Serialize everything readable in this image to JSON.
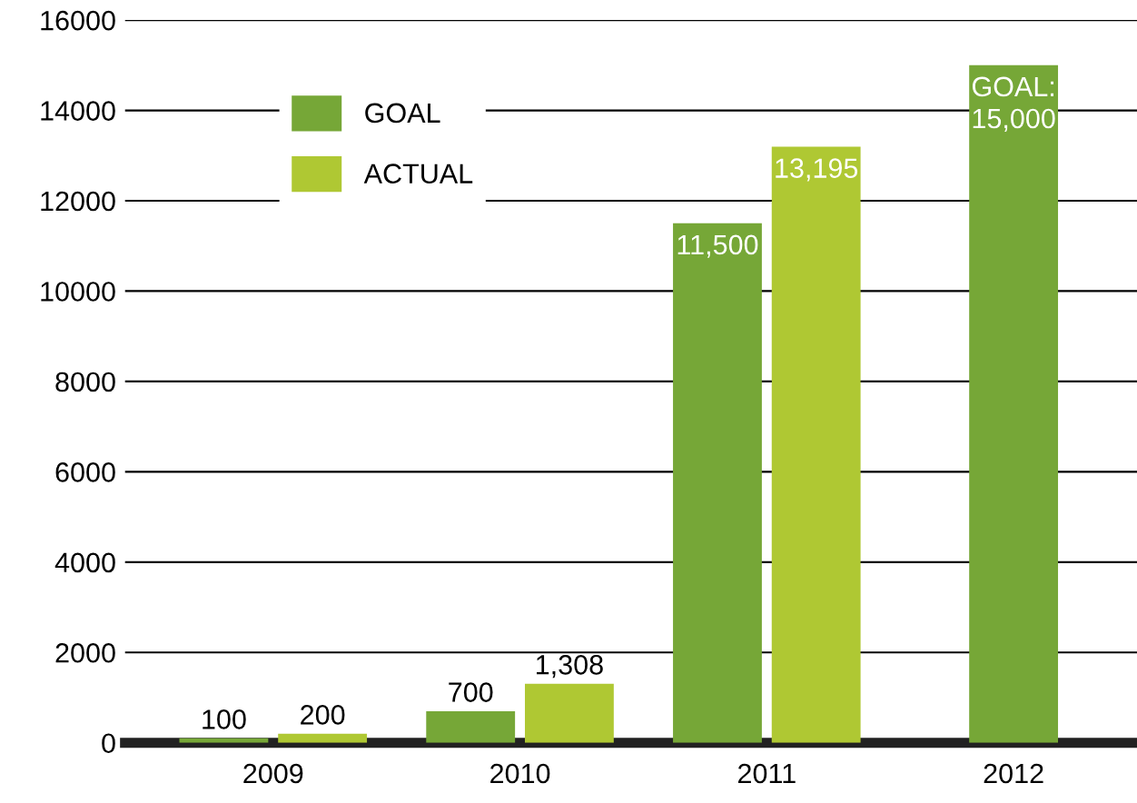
{
  "chart_data": {
    "type": "bar",
    "categories": [
      "2009",
      "2010",
      "2011",
      "2012"
    ],
    "series": [
      {
        "name": "GOAL",
        "color": "#76a737",
        "values": [
          100,
          700,
          11500,
          15000
        ],
        "value_labels": [
          "100",
          "700",
          "11,500",
          "GOAL:\n15,000"
        ]
      },
      {
        "name": "ACTUAL",
        "color": "#afc833",
        "values": [
          200,
          1308,
          13195,
          null
        ],
        "value_labels": [
          "200",
          "1,308",
          "13,195",
          null
        ]
      }
    ],
    "ylim": [
      0,
      16000
    ],
    "yticks": [
      0,
      2000,
      4000,
      6000,
      8000,
      10000,
      12000,
      14000,
      16000
    ],
    "grid": "y",
    "legend": "top left"
  }
}
